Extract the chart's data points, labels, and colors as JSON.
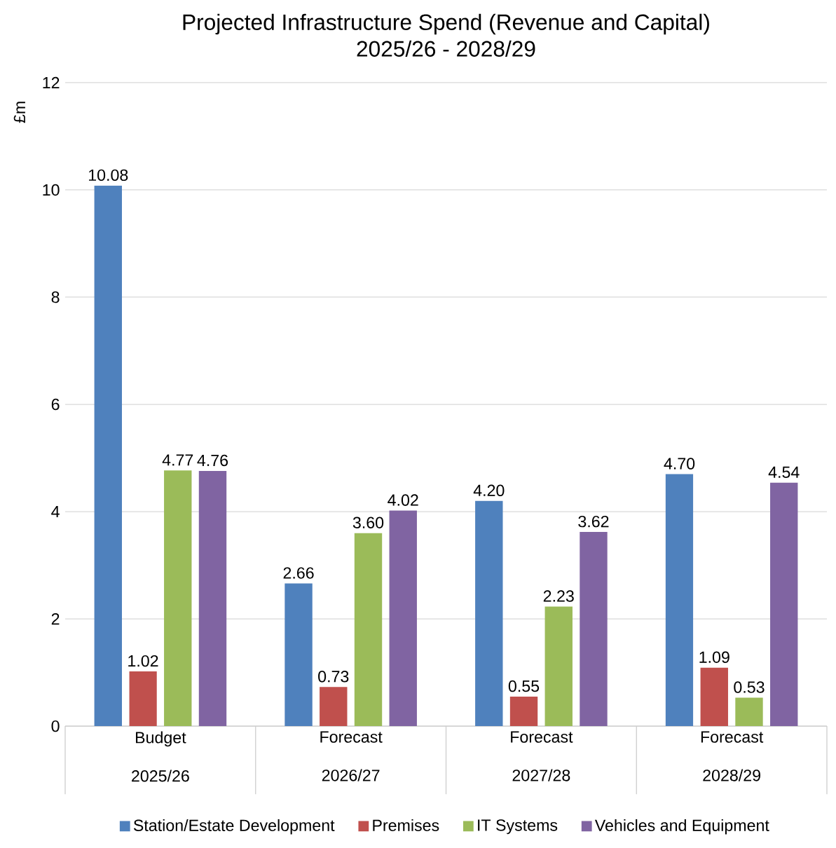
{
  "chart_data": {
    "type": "bar",
    "title": "Projected Infrastructure Spend (Revenue and Capital)",
    "subtitle": "2025/26 - 2028/29",
    "ylabel": "£m",
    "categories": [
      "Budget 2025/26",
      "Forecast 2026/27",
      "Forecast 2027/28",
      "Forecast 2028/29"
    ],
    "series": [
      {
        "name": "Station/Estate Development",
        "color": "#4f81bd",
        "values": [
          10.08,
          2.66,
          4.2,
          4.7
        ],
        "value_labels": [
          "10.08",
          "2.66",
          "4.20",
          "4.70"
        ]
      },
      {
        "name": "Premises",
        "color": "#c0504d",
        "values": [
          1.02,
          0.73,
          0.55,
          1.09
        ],
        "value_labels": [
          "1.02",
          "0.73",
          "0.55",
          "1.09"
        ]
      },
      {
        "name": "IT Systems",
        "color": "#9bbb59",
        "values": [
          4.77,
          3.6,
          2.23,
          0.53
        ],
        "value_labels": [
          "4.77",
          "3.60",
          "2.23",
          "0.53"
        ]
      },
      {
        "name": "Vehicles and Equipment",
        "color": "#8064a2",
        "values": [
          4.76,
          4.02,
          3.62,
          4.54
        ],
        "value_labels": [
          "4.76",
          "4.02",
          "3.62",
          "4.54"
        ]
      }
    ],
    "ylim": [
      0,
      12
    ],
    "yticks": [
      0,
      2,
      4,
      6,
      8,
      10,
      12
    ],
    "grid": "y",
    "legend": "bottom"
  }
}
